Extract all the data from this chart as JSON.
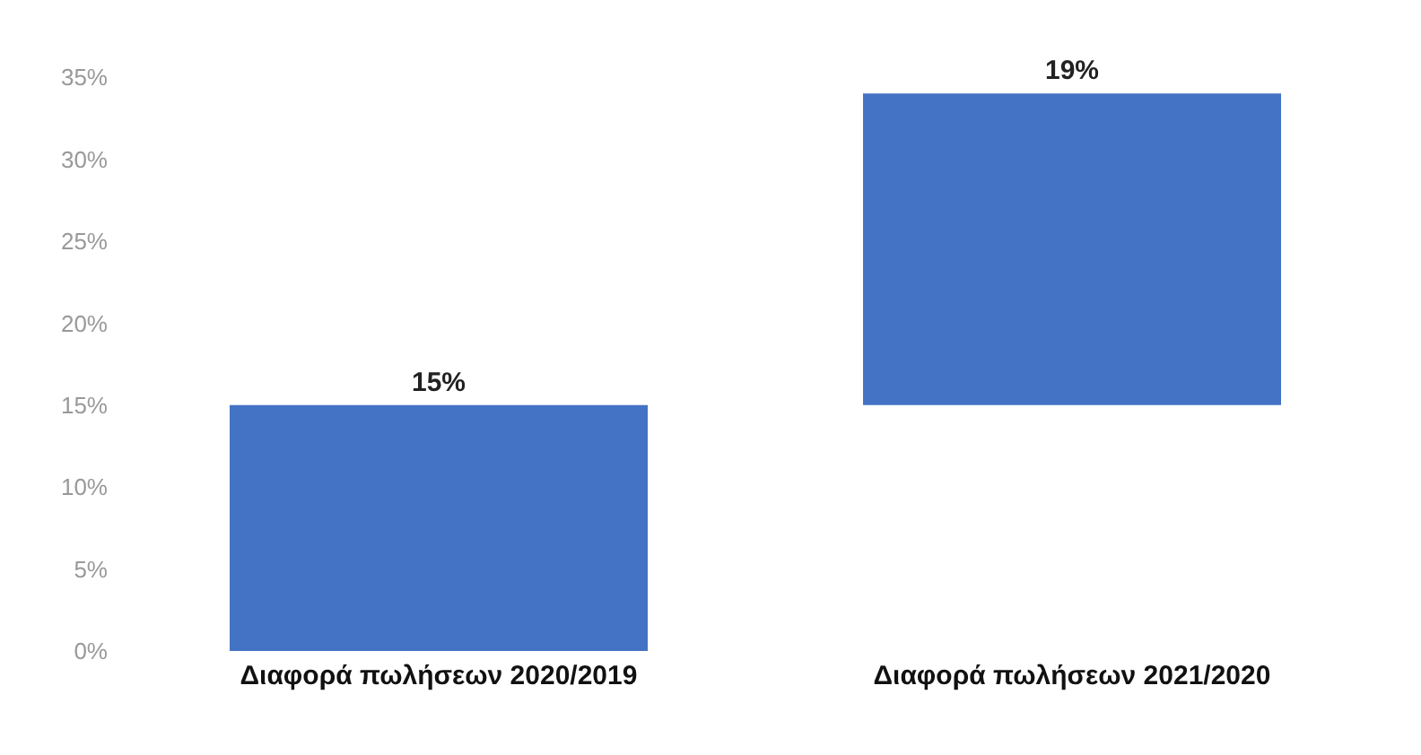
{
  "chart_data": {
    "type": "bar",
    "categories": [
      "Διαφορά πωλήσεων 2020/2019",
      "Διαφορά πωλήσεων 2021/2020"
    ],
    "values": [
      15,
      19
    ],
    "base": [
      0,
      15
    ],
    "value_labels": [
      "15%",
      "19%"
    ],
    "color": "#4472c4",
    "ylim": [
      0,
      35
    ],
    "yticks": [
      {
        "value": 0,
        "label": "0%"
      },
      {
        "value": 5,
        "label": "5%"
      },
      {
        "value": 10,
        "label": "10%"
      },
      {
        "value": 15,
        "label": "15%"
      },
      {
        "value": 20,
        "label": "20%"
      },
      {
        "value": 25,
        "label": "25%"
      },
      {
        "value": 30,
        "label": "30%"
      },
      {
        "value": 35,
        "label": "35%"
      }
    ],
    "grid": false,
    "legend": false
  }
}
